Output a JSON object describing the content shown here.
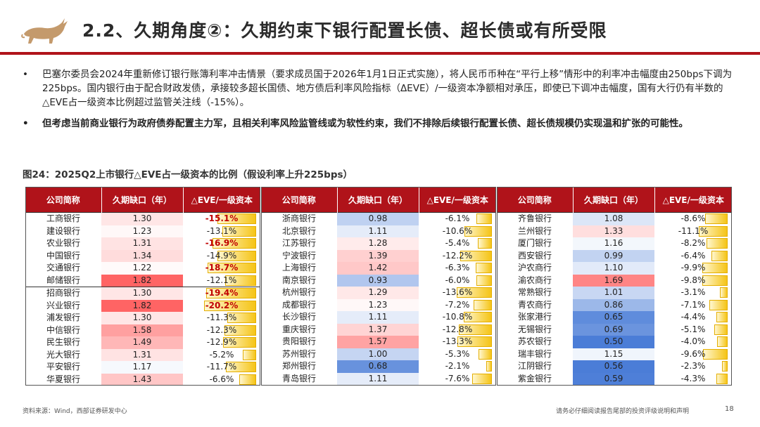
{
  "header": {
    "title": "2.2、久期角度②：久期约束下银行配置长债、超长债或有所受限"
  },
  "bullets": [
    {
      "dot": "•",
      "text": "巴塞尔委员会2024年重新修订银行账簿利率冲击情景（要求成员国于2026年1月1日正式实施），将人民币币种在“平行上移”情形中的利率冲击幅度由250bps下调为225bps。国内银行由于配合财政发债，承接较多超长国债、地方债后利率风险指标（ΔEVE）/一级资本净额相对承压，即使已下调冲击幅度，国有大行仍有半数的△EVE占一级资本比例超过监管关注线（-15%）。"
    },
    {
      "dot": "•",
      "text": "但考虑当前商业银行为政府债券配置主力军，且相关利率风险监管线或为软性约束，我们不排除后续银行配置长债、超长债规模仍实现温和扩张的可能性。"
    }
  ],
  "figure": {
    "caption": "图24：2025Q2上市银行△EVE占一级资本的比例（假设利率上升225bps）"
  },
  "colors": {
    "accent": "#b0131a",
    "bar": "#f5c416"
  },
  "table_headers": [
    "公司简称",
    "久期缺口（年）",
    "△EVE/一级资本"
  ],
  "tables": [
    {
      "rows": [
        {
          "name": "工商银行",
          "gap": "1.30",
          "eve": "-15.1%",
          "hl": true
        },
        {
          "name": "建设银行",
          "gap": "1.23",
          "eve": "-13.1%",
          "hl": false
        },
        {
          "name": "农业银行",
          "gap": "1.31",
          "eve": "-16.9%",
          "hl": true
        },
        {
          "name": "中国银行",
          "gap": "1.34",
          "eve": "-14.9%",
          "hl": false
        },
        {
          "name": "交通银行",
          "gap": "1.22",
          "eve": "-18.7%",
          "hl": true
        },
        {
          "name": "邮储银行",
          "gap": "1.82",
          "eve": "-12.1%",
          "hl": false
        },
        {
          "name": "招商银行",
          "gap": "1.30",
          "eve": "-19.4%",
          "hl": true
        },
        {
          "name": "兴业银行",
          "gap": "1.82",
          "eve": "-20.2%",
          "hl": true
        },
        {
          "name": "浦发银行",
          "gap": "1.30",
          "eve": "-11.3%",
          "hl": false
        },
        {
          "name": "中信银行",
          "gap": "1.58",
          "eve": "-12.3%",
          "hl": false
        },
        {
          "name": "民生银行",
          "gap": "1.49",
          "eve": "-12.9%",
          "hl": false
        },
        {
          "name": "光大银行",
          "gap": "1.31",
          "eve": "-5.2%",
          "hl": false
        },
        {
          "name": "平安银行",
          "gap": "1.17",
          "eve": "-11.7%",
          "hl": false
        },
        {
          "name": "华夏银行",
          "gap": "1.43",
          "eve": "-6.6%",
          "hl": false
        }
      ]
    },
    {
      "rows": [
        {
          "name": "浙商银行",
          "gap": "0.98",
          "eve": "-6.1%",
          "hl": false
        },
        {
          "name": "北京银行",
          "gap": "1.11",
          "eve": "-10.6%",
          "hl": false
        },
        {
          "name": "江苏银行",
          "gap": "1.28",
          "eve": "-5.4%",
          "hl": false
        },
        {
          "name": "宁波银行",
          "gap": "1.39",
          "eve": "-12.2%",
          "hl": false
        },
        {
          "name": "上海银行",
          "gap": "1.42",
          "eve": "-6.3%",
          "hl": false
        },
        {
          "name": "南京银行",
          "gap": "0.93",
          "eve": "-6.0%",
          "hl": false
        },
        {
          "name": "杭州银行",
          "gap": "1.29",
          "eve": "-13.6%",
          "hl": false
        },
        {
          "name": "成都银行",
          "gap": "1.23",
          "eve": "-7.2%",
          "hl": false
        },
        {
          "name": "长沙银行",
          "gap": "1.11",
          "eve": "-10.8%",
          "hl": false
        },
        {
          "name": "重庆银行",
          "gap": "1.37",
          "eve": "-12.8%",
          "hl": false
        },
        {
          "name": "贵阳银行",
          "gap": "1.57",
          "eve": "-13.3%",
          "hl": false
        },
        {
          "name": "苏州银行",
          "gap": "1.00",
          "eve": "-5.3%",
          "hl": false
        },
        {
          "name": "郑州银行",
          "gap": "0.68",
          "eve": "-2.1%",
          "hl": false
        },
        {
          "name": "青岛银行",
          "gap": "1.11",
          "eve": "-7.6%",
          "hl": false
        }
      ]
    },
    {
      "rows": [
        {
          "name": "齐鲁银行",
          "gap": "1.08",
          "eve": "-8.6%",
          "hl": false
        },
        {
          "name": "兰州银行",
          "gap": "1.33",
          "eve": "-11.1%",
          "hl": false
        },
        {
          "name": "厦门银行",
          "gap": "1.16",
          "eve": "-8.2%",
          "hl": false
        },
        {
          "name": "西安银行",
          "gap": "0.99",
          "eve": "-6.4%",
          "hl": false
        },
        {
          "name": "沪农商行",
          "gap": "1.10",
          "eve": "-9.9%",
          "hl": false
        },
        {
          "name": "渝农商行",
          "gap": "1.69",
          "eve": "-9.8%",
          "hl": false
        },
        {
          "name": "常熟银行",
          "gap": "1.01",
          "eve": "-3.1%",
          "hl": false
        },
        {
          "name": "青农商行",
          "gap": "0.86",
          "eve": "-7.1%",
          "hl": false
        },
        {
          "name": "张家港行",
          "gap": "0.65",
          "eve": "-4.4%",
          "hl": false
        },
        {
          "name": "无锡银行",
          "gap": "0.69",
          "eve": "-5.1%",
          "hl": false
        },
        {
          "name": "苏农银行",
          "gap": "0.50",
          "eve": "-4.0%",
          "hl": false
        },
        {
          "name": "瑞丰银行",
          "gap": "1.15",
          "eve": "-9.6%",
          "hl": false
        },
        {
          "name": "江阴银行",
          "gap": "0.56",
          "eve": "-2.3%",
          "hl": false
        },
        {
          "name": "紫金银行",
          "gap": "0.59",
          "eve": "-4.3%",
          "hl": false
        }
      ]
    }
  ],
  "footer": {
    "source": "资料来源：Wind，西部证券研发中心",
    "disclaimer": "请务必仔细阅读报告尾部的投资评级说明和声明",
    "page": "18"
  }
}
